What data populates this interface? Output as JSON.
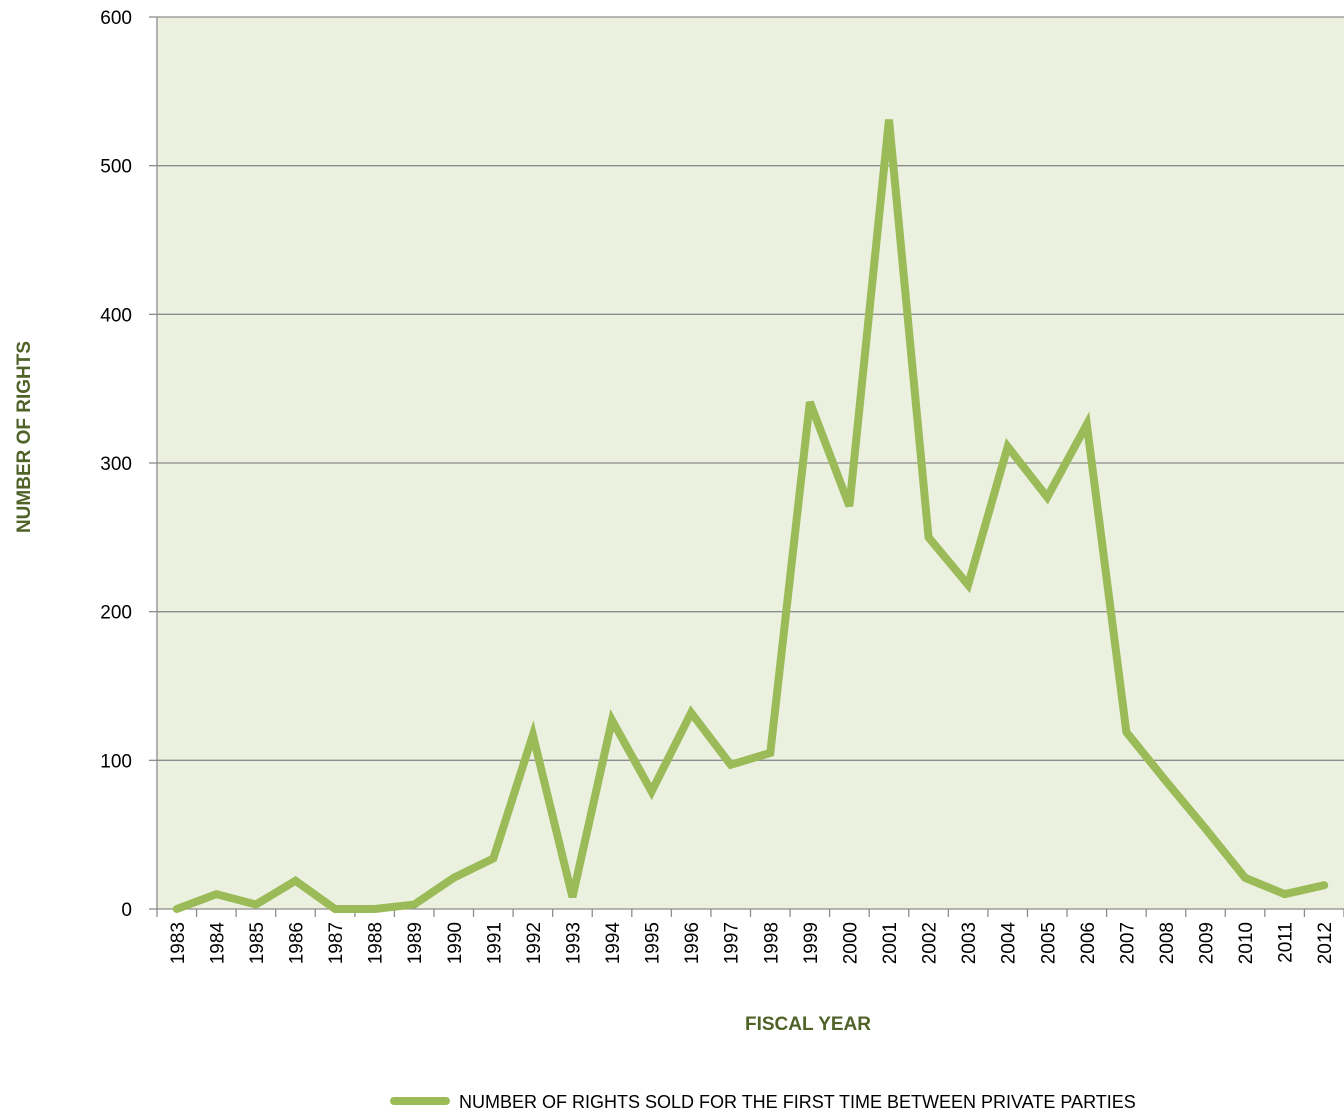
{
  "chart_data": {
    "type": "line",
    "x_label": "FISCAL YEAR",
    "y_label": "NUMBER  OF  RIGHTS",
    "categories": [
      "1983",
      "1984",
      "1985",
      "1986",
      "1987",
      "1988",
      "1989",
      "1990",
      "1991",
      "1992",
      "1993",
      "1994",
      "1995",
      "1996",
      "1997",
      "1998",
      "1999",
      "2000",
      "2001",
      "2002",
      "2003",
      "2004",
      "2005",
      "2006",
      "2007",
      "2008",
      "2009",
      "2010",
      "2011",
      "2012"
    ],
    "series": [
      {
        "name": "NUMBER OF RIGHTS SOLD FOR THE FIRST TIME BETWEEN PRIVATE PARTIES",
        "color": "#9bbb59",
        "values": [
          0,
          10,
          3,
          19,
          0,
          0,
          3,
          21,
          34,
          117,
          8,
          127,
          79,
          132,
          97,
          105,
          341,
          271,
          531,
          250,
          218,
          311,
          277,
          326,
          119,
          86,
          54,
          21,
          10,
          16
        ]
      }
    ],
    "ylim": [
      0,
      600
    ],
    "yticks": [
      0,
      100,
      200,
      300,
      400,
      500,
      600
    ],
    "grid": true,
    "legend": "bottom",
    "plot_background": "#ebf1de"
  }
}
